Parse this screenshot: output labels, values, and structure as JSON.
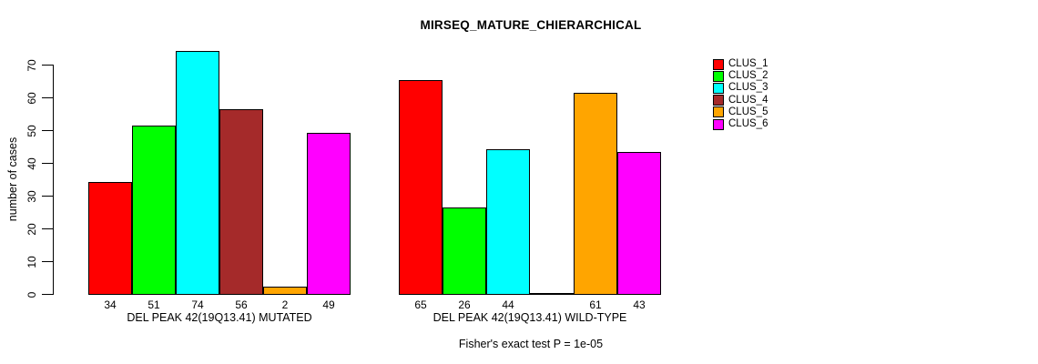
{
  "chart_data": {
    "type": "bar",
    "title": "MIRSEQ_MATURE_CHIERARCHICAL",
    "ylabel": "number of cases",
    "xlabel": "",
    "ylim": [
      0,
      70
    ],
    "yticks": [
      0,
      10,
      20,
      30,
      40,
      50,
      60,
      70
    ],
    "grid": false,
    "series_names": [
      "CLUS_1",
      "CLUS_2",
      "CLUS_3",
      "CLUS_4",
      "CLUS_5",
      "CLUS_6"
    ],
    "series_colors": [
      "#FF0000",
      "#00FF00",
      "#00FFFF",
      "#A52A2A",
      "#FFA500",
      "#FF00FF"
    ],
    "groups": [
      {
        "label": "DEL PEAK 42(19Q13.41) MUTATED",
        "values": [
          34,
          51,
          74,
          56,
          2,
          49
        ],
        "bar_labels": [
          "34",
          "51",
          "74",
          "56",
          "2",
          "49"
        ]
      },
      {
        "label": "DEL PEAK 42(19Q13.41) WILD-TYPE",
        "values": [
          65,
          26,
          44,
          0,
          61,
          43
        ],
        "bar_labels": [
          "65",
          "26",
          "44",
          "",
          "61",
          "43"
        ]
      }
    ],
    "legend": {
      "position": "top-right",
      "entries": [
        "CLUS_1",
        "CLUS_2",
        "CLUS_3",
        "CLUS_4",
        "CLUS_5",
        "CLUS_6"
      ]
    },
    "footnote": "Fisher's exact test P = 1e-05"
  }
}
